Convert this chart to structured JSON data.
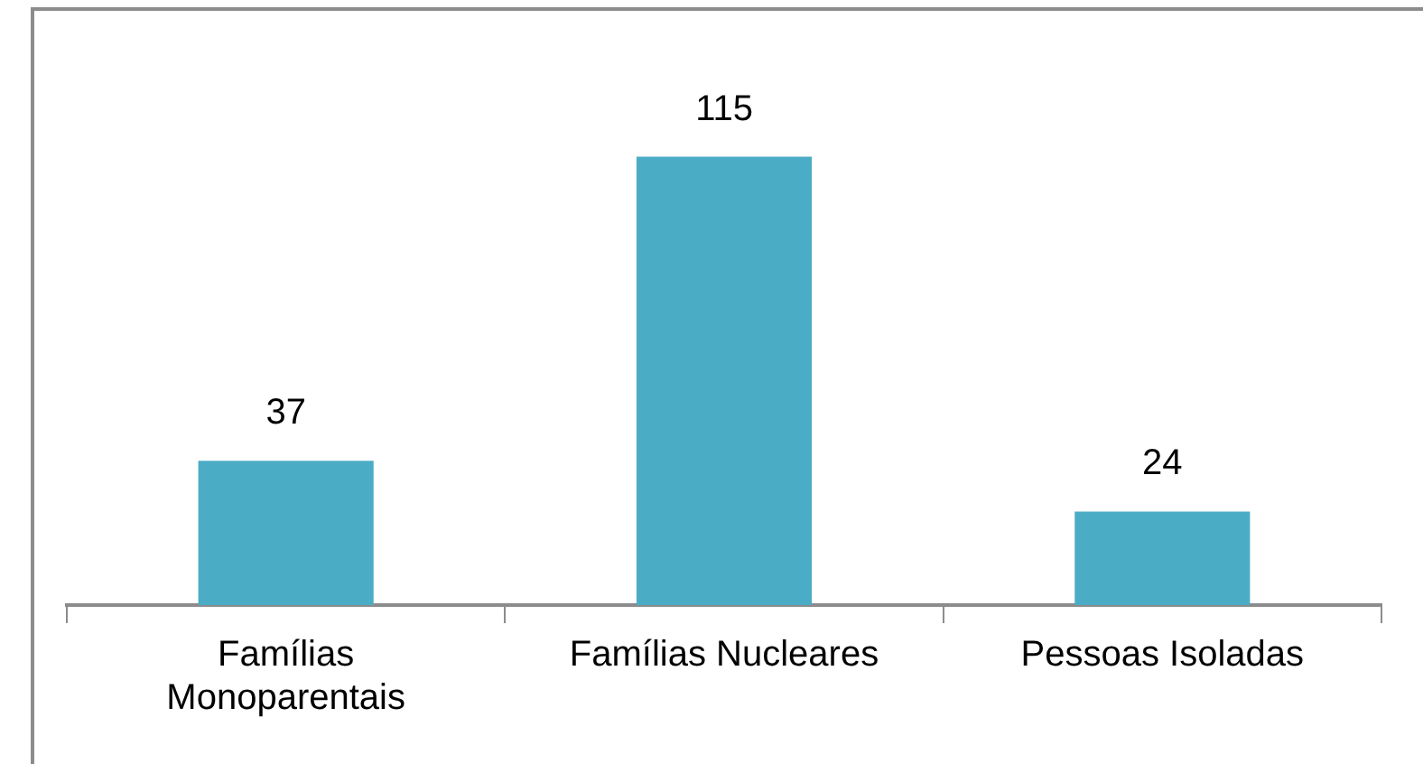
{
  "chart_data": {
    "type": "bar",
    "categories": [
      "Famílias Monoparentais",
      "Famílias Nucleares",
      "Pessoas Isoladas"
    ],
    "values": [
      37,
      115,
      24
    ],
    "color": "#4bacc6",
    "data_labels": true,
    "grid": false,
    "legend": false
  }
}
